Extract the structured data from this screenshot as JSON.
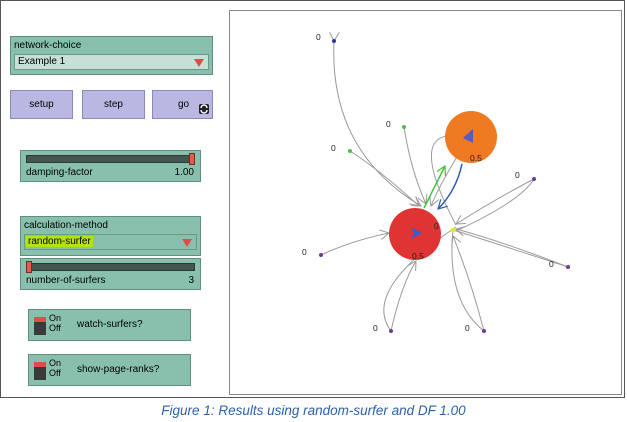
{
  "network_choice": {
    "label": "network-choice",
    "value": "Example 1"
  },
  "buttons": {
    "setup": "setup",
    "step": "step",
    "go": "go"
  },
  "damping_slider": {
    "label": "damping-factor",
    "value": "1.00",
    "fraction": 1.0
  },
  "calc_method": {
    "label": "calculation-method",
    "value": "random-surfer"
  },
  "surfers_slider": {
    "label": "number-of-surfers",
    "value": "3",
    "fraction": 0.0
  },
  "switches": {
    "watch": {
      "on": "On",
      "off": "Off",
      "label": "watch-surfers?"
    },
    "pagerank": {
      "on": "On",
      "off": "Off",
      "label": "show-page-ranks?"
    }
  },
  "view": {
    "big_nodes": [
      {
        "label": "0.5",
        "color": "#e03434"
      },
      {
        "label": "0.5",
        "color": "#f07a22"
      }
    ],
    "node_labels": [
      "0",
      "0",
      "0",
      "0",
      "0",
      "0",
      "0",
      "0",
      "0",
      "0"
    ],
    "center_label": "0"
  },
  "caption": "Figure 1: Results using random-surfer and DF 1.00",
  "colors": {
    "widget": "#88c0ad",
    "button": "#b9b8e2",
    "highlight": "#b6e30c",
    "caption": "#2e5fa8"
  }
}
